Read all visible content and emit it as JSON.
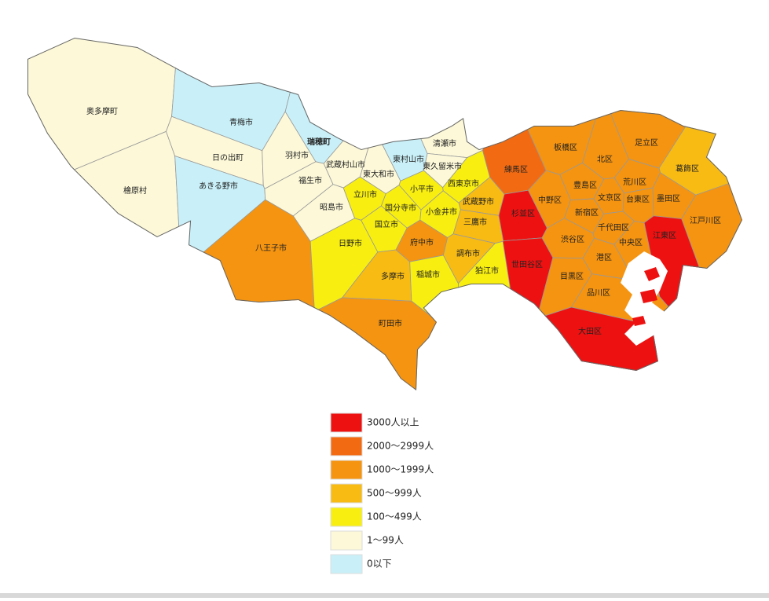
{
  "legend": [
    {
      "label": "3000人以上",
      "color": "#ee1111"
    },
    {
      "label": "2000～2999人",
      "color": "#f26a12"
    },
    {
      "label": "1000～1999人",
      "color": "#f59410"
    },
    {
      "label": "500～999人",
      "color": "#f8bb14"
    },
    {
      "label": "100～499人",
      "color": "#f8ef10"
    },
    {
      "label": "1～99人",
      "color": "#fcf8d8"
    },
    {
      "label": "0以下",
      "color": "#c9f0f8"
    }
  ],
  "regions": [
    {
      "name": "奥多摩町",
      "level": 5
    },
    {
      "name": "檜原村",
      "level": 5
    },
    {
      "name": "青梅市",
      "level": 6
    },
    {
      "name": "日の出町",
      "level": 5
    },
    {
      "name": "あきる野市",
      "level": 6
    },
    {
      "name": "羽村市",
      "level": 5
    },
    {
      "name": "瑞穂町",
      "level": 6
    },
    {
      "name": "福生市",
      "level": 5
    },
    {
      "name": "武蔵村山市",
      "level": 5
    },
    {
      "name": "東大和市",
      "level": 5
    },
    {
      "name": "東村山市",
      "level": 6
    },
    {
      "name": "清瀬市",
      "level": 5
    },
    {
      "name": "東久留米市",
      "level": 5
    },
    {
      "name": "昭島市",
      "level": 5
    },
    {
      "name": "立川市",
      "level": 4
    },
    {
      "name": "小平市",
      "level": 4
    },
    {
      "name": "西東京市",
      "level": 4
    },
    {
      "name": "国分寺市",
      "level": 4
    },
    {
      "name": "小金井市",
      "level": 4
    },
    {
      "name": "武蔵野市",
      "level": 3
    },
    {
      "name": "三鷹市",
      "level": 3
    },
    {
      "name": "八王子市",
      "level": 2
    },
    {
      "name": "日野市",
      "level": 4
    },
    {
      "name": "国立市",
      "level": 4
    },
    {
      "name": "府中市",
      "level": 2
    },
    {
      "name": "調布市",
      "level": 3
    },
    {
      "name": "狛江市",
      "level": 4
    },
    {
      "name": "多摩市",
      "level": 3
    },
    {
      "name": "稲城市",
      "level": 4
    },
    {
      "name": "町田市",
      "level": 2
    },
    {
      "name": "練馬区",
      "level": 1
    },
    {
      "name": "板橋区",
      "level": 2
    },
    {
      "name": "北区",
      "level": 2
    },
    {
      "name": "足立区",
      "level": 2
    },
    {
      "name": "葛飾区",
      "level": 3
    },
    {
      "name": "荒川区",
      "level": 2
    },
    {
      "name": "豊島区",
      "level": 2
    },
    {
      "name": "文京区",
      "level": 2
    },
    {
      "name": "台東区",
      "level": 2
    },
    {
      "name": "墨田区",
      "level": 2
    },
    {
      "name": "江戸川区",
      "level": 2
    },
    {
      "name": "中野区",
      "level": 2
    },
    {
      "name": "新宿区",
      "level": 2
    },
    {
      "name": "杉並区",
      "level": 0
    },
    {
      "name": "千代田区",
      "level": 2
    },
    {
      "name": "中央区",
      "level": 2
    },
    {
      "name": "江東区",
      "level": 0
    },
    {
      "name": "渋谷区",
      "level": 2
    },
    {
      "name": "港区",
      "level": 2
    },
    {
      "name": "世田谷区",
      "level": 0
    },
    {
      "name": "目黒区",
      "level": 2
    },
    {
      "name": "品川区",
      "level": 2
    },
    {
      "name": "大田区",
      "level": 0
    }
  ]
}
